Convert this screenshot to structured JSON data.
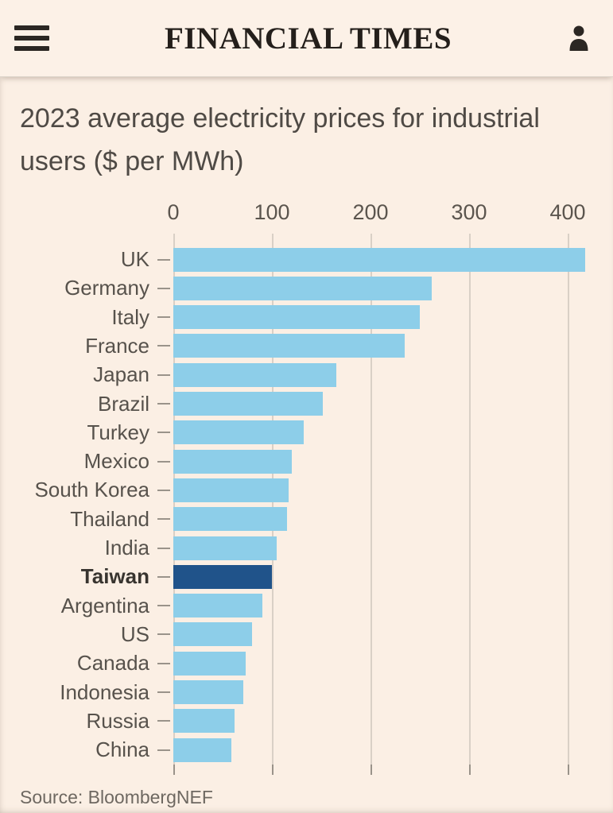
{
  "header": {
    "masthead": "FINANCIAL TIMES",
    "menu_icon": "hamburger-icon",
    "account_icon": "user-icon"
  },
  "colors": {
    "background": "#fbefe4",
    "bar": "#8dcee9",
    "bar_highlight": "#20538a",
    "gridline": "#d9d0c6",
    "label_text": "#57524c",
    "title_text": "#4f4a45",
    "masthead_text": "#241f1b"
  },
  "chart_data": {
    "type": "bar",
    "orientation": "horizontal",
    "title": "2023 average electricity prices for industrial users ($ per MWh)",
    "categories": [
      "UK",
      "Germany",
      "Italy",
      "France",
      "Japan",
      "Brazil",
      "Turkey",
      "Mexico",
      "South Korea",
      "Thailand",
      "India",
      "Taiwan",
      "Argentina",
      "US",
      "Canada",
      "Indonesia",
      "Russia",
      "China"
    ],
    "values": [
      418,
      262,
      250,
      235,
      165,
      152,
      132,
      120,
      117,
      115,
      105,
      100,
      90,
      80,
      73,
      71,
      62,
      59
    ],
    "highlight_category": "Taiwan",
    "x_ticks": [
      0,
      100,
      200,
      300,
      400
    ],
    "xlim": [
      0,
      420
    ],
    "grid": true,
    "legend": "none",
    "unit": "$ per MWh",
    "source": "Source: BloombergNEF"
  }
}
